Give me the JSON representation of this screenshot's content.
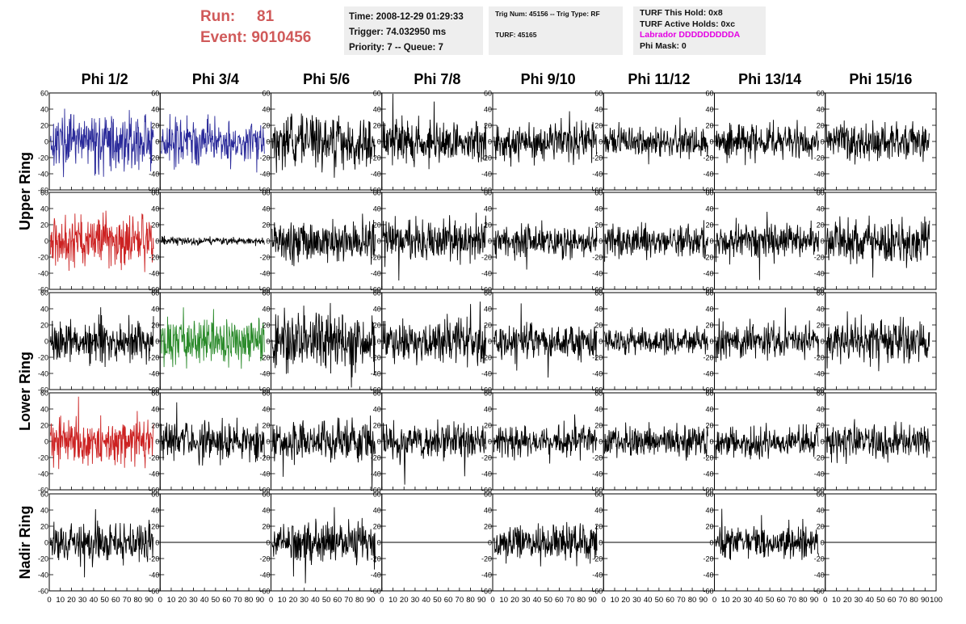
{
  "header": {
    "run_label": "Run:",
    "run_value": "81",
    "event_label": "Event:",
    "event_value": "9010456",
    "time": "Time: 2008-12-29 01:29:33",
    "trigger": "Trigger: 74.032950 ms",
    "priority": "Priority: 7 -- Queue: 7",
    "trig_num": "Trig Num: 45156 -- Trig Type: RF",
    "turf": "TURF: 45165",
    "turf_this_hold": "TURF This Hold: 0x8",
    "turf_active_holds": "TURF Active Holds: 0xc",
    "labrador": "Labrador DDDDDDDDDA",
    "phi_mask": "Phi Mask: 0"
  },
  "colors": {
    "header_red": "#d05a5a",
    "labrador_magenta": "#e400e4",
    "trace_black": "#000000",
    "trace_blue": "#2a2a9a",
    "trace_red": "#cc2222",
    "trace_green": "#2a8a2a"
  },
  "chart_data": {
    "type": "line",
    "columns": [
      "Phi 1/2",
      "Phi 3/4",
      "Phi 5/6",
      "Phi 7/8",
      "Phi 9/10",
      "Phi 11/12",
      "Phi 13/14",
      "Phi 15/16"
    ],
    "rows": [
      "Upper Ring",
      "Upper Ring",
      "Lower Ring",
      "Lower Ring",
      "Nadir Ring"
    ],
    "row_labels": [
      {
        "text": "Upper Ring",
        "spans_rows": [
          0,
          1
        ]
      },
      {
        "text": "Lower Ring",
        "spans_rows": [
          2,
          3
        ]
      },
      {
        "text": "Nadir Ring",
        "spans_rows": [
          4,
          4
        ]
      }
    ],
    "xlim": [
      0,
      100
    ],
    "xticks": [
      0,
      10,
      20,
      30,
      40,
      50,
      60,
      70,
      80,
      90,
      100
    ],
    "ylim": [
      -60,
      60
    ],
    "yticks": [
      -60,
      -40,
      -20,
      0,
      20,
      40,
      60
    ],
    "grid": false,
    "panels": [
      {
        "row": 0,
        "col": 0,
        "color": "blue",
        "amplitude": 28
      },
      {
        "row": 0,
        "col": 1,
        "color": "blue",
        "amplitude": 25
      },
      {
        "row": 0,
        "col": 2,
        "color": "black",
        "amplitude": 26
      },
      {
        "row": 0,
        "col": 3,
        "color": "black",
        "amplitude": 22
      },
      {
        "row": 0,
        "col": 4,
        "color": "black",
        "amplitude": 20
      },
      {
        "row": 0,
        "col": 5,
        "color": "black",
        "amplitude": 16
      },
      {
        "row": 0,
        "col": 6,
        "color": "black",
        "amplitude": 18
      },
      {
        "row": 0,
        "col": 7,
        "color": "black",
        "amplitude": 20
      },
      {
        "row": 1,
        "col": 0,
        "color": "red",
        "amplitude": 28
      },
      {
        "row": 1,
        "col": 1,
        "color": "black",
        "amplitude": 4
      },
      {
        "row": 1,
        "col": 2,
        "color": "black",
        "amplitude": 22
      },
      {
        "row": 1,
        "col": 3,
        "color": "black",
        "amplitude": 22
      },
      {
        "row": 1,
        "col": 4,
        "color": "black",
        "amplitude": 16
      },
      {
        "row": 1,
        "col": 5,
        "color": "black",
        "amplitude": 16
      },
      {
        "row": 1,
        "col": 6,
        "color": "black",
        "amplitude": 18
      },
      {
        "row": 1,
        "col": 7,
        "color": "black",
        "amplitude": 24
      },
      {
        "row": 2,
        "col": 0,
        "color": "black",
        "amplitude": 22
      },
      {
        "row": 2,
        "col": 1,
        "color": "green",
        "amplitude": 26
      },
      {
        "row": 2,
        "col": 2,
        "color": "black",
        "amplitude": 30
      },
      {
        "row": 2,
        "col": 3,
        "color": "black",
        "amplitude": 22
      },
      {
        "row": 2,
        "col": 4,
        "color": "black",
        "amplitude": 18
      },
      {
        "row": 2,
        "col": 5,
        "color": "black",
        "amplitude": 14
      },
      {
        "row": 2,
        "col": 6,
        "color": "black",
        "amplitude": 18
      },
      {
        "row": 2,
        "col": 7,
        "color": "black",
        "amplitude": 22
      },
      {
        "row": 3,
        "col": 0,
        "color": "red",
        "amplitude": 24
      },
      {
        "row": 3,
        "col": 1,
        "color": "black",
        "amplitude": 20
      },
      {
        "row": 3,
        "col": 2,
        "color": "black",
        "amplitude": 22
      },
      {
        "row": 3,
        "col": 3,
        "color": "black",
        "amplitude": 20
      },
      {
        "row": 3,
        "col": 4,
        "color": "black",
        "amplitude": 16
      },
      {
        "row": 3,
        "col": 5,
        "color": "black",
        "amplitude": 16
      },
      {
        "row": 3,
        "col": 6,
        "color": "black",
        "amplitude": 16
      },
      {
        "row": 3,
        "col": 7,
        "color": "black",
        "amplitude": 18
      },
      {
        "row": 4,
        "col": 0,
        "color": "black",
        "amplitude": 20
      },
      {
        "row": 4,
        "col": 1,
        "color": "black",
        "amplitude": 0
      },
      {
        "row": 4,
        "col": 2,
        "color": "black",
        "amplitude": 20
      },
      {
        "row": 4,
        "col": 3,
        "color": "black",
        "amplitude": 0
      },
      {
        "row": 4,
        "col": 4,
        "color": "black",
        "amplitude": 20
      },
      {
        "row": 4,
        "col": 5,
        "color": "black",
        "amplitude": 0
      },
      {
        "row": 4,
        "col": 6,
        "color": "black",
        "amplitude": 18
      },
      {
        "row": 4,
        "col": 7,
        "color": "black",
        "amplitude": 0
      }
    ]
  }
}
